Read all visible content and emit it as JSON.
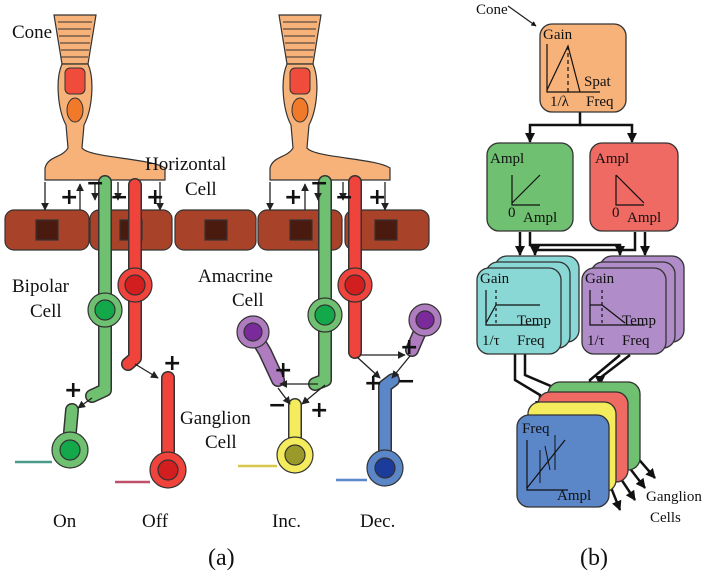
{
  "panel_a": {
    "cone": "Cone",
    "horizontal_cell": [
      "Horizontal",
      "Cell"
    ],
    "bipolar_cell": [
      "Bipolar",
      "Cell"
    ],
    "amacrine_cell": [
      "Amacrine",
      "Cell"
    ],
    "ganglion_cell": [
      "Ganglion",
      "Cell"
    ],
    "signs": [
      "+",
      "−",
      "−",
      "+",
      "+",
      "+",
      "+",
      "−",
      "−",
      "+",
      "+",
      "−",
      "+",
      "+",
      "+",
      "−"
    ],
    "outputs": [
      "On",
      "Off",
      "Inc.",
      "Dec."
    ],
    "caption": "(a)"
  },
  "panel_b": {
    "input": "Cone",
    "spatial_filter": {
      "y_label": "Gain",
      "x_label": [
        "Spat",
        "Freq"
      ],
      "corner": "1/λ"
    },
    "on_rectifier": {
      "y_label": "Ampl",
      "origin": "0",
      "x_label": "Ampl"
    },
    "off_rectifier": {
      "y_label": "Ampl",
      "origin": "0",
      "x_label": "Ampl"
    },
    "temporal_filter_1": {
      "y_label": "Gain",
      "x_label": [
        "Temp",
        "Freq"
      ],
      "corner": "1/τ"
    },
    "temporal_filter_2": {
      "y_label": "Gain",
      "x_label": [
        "Temp",
        "Freq"
      ],
      "corner": "1/τ"
    },
    "spike_generator": {
      "y_label": "Freq",
      "x_label": "Ampl"
    },
    "output": [
      "Ganglion",
      "Cells"
    ],
    "caption": "(b)"
  }
}
